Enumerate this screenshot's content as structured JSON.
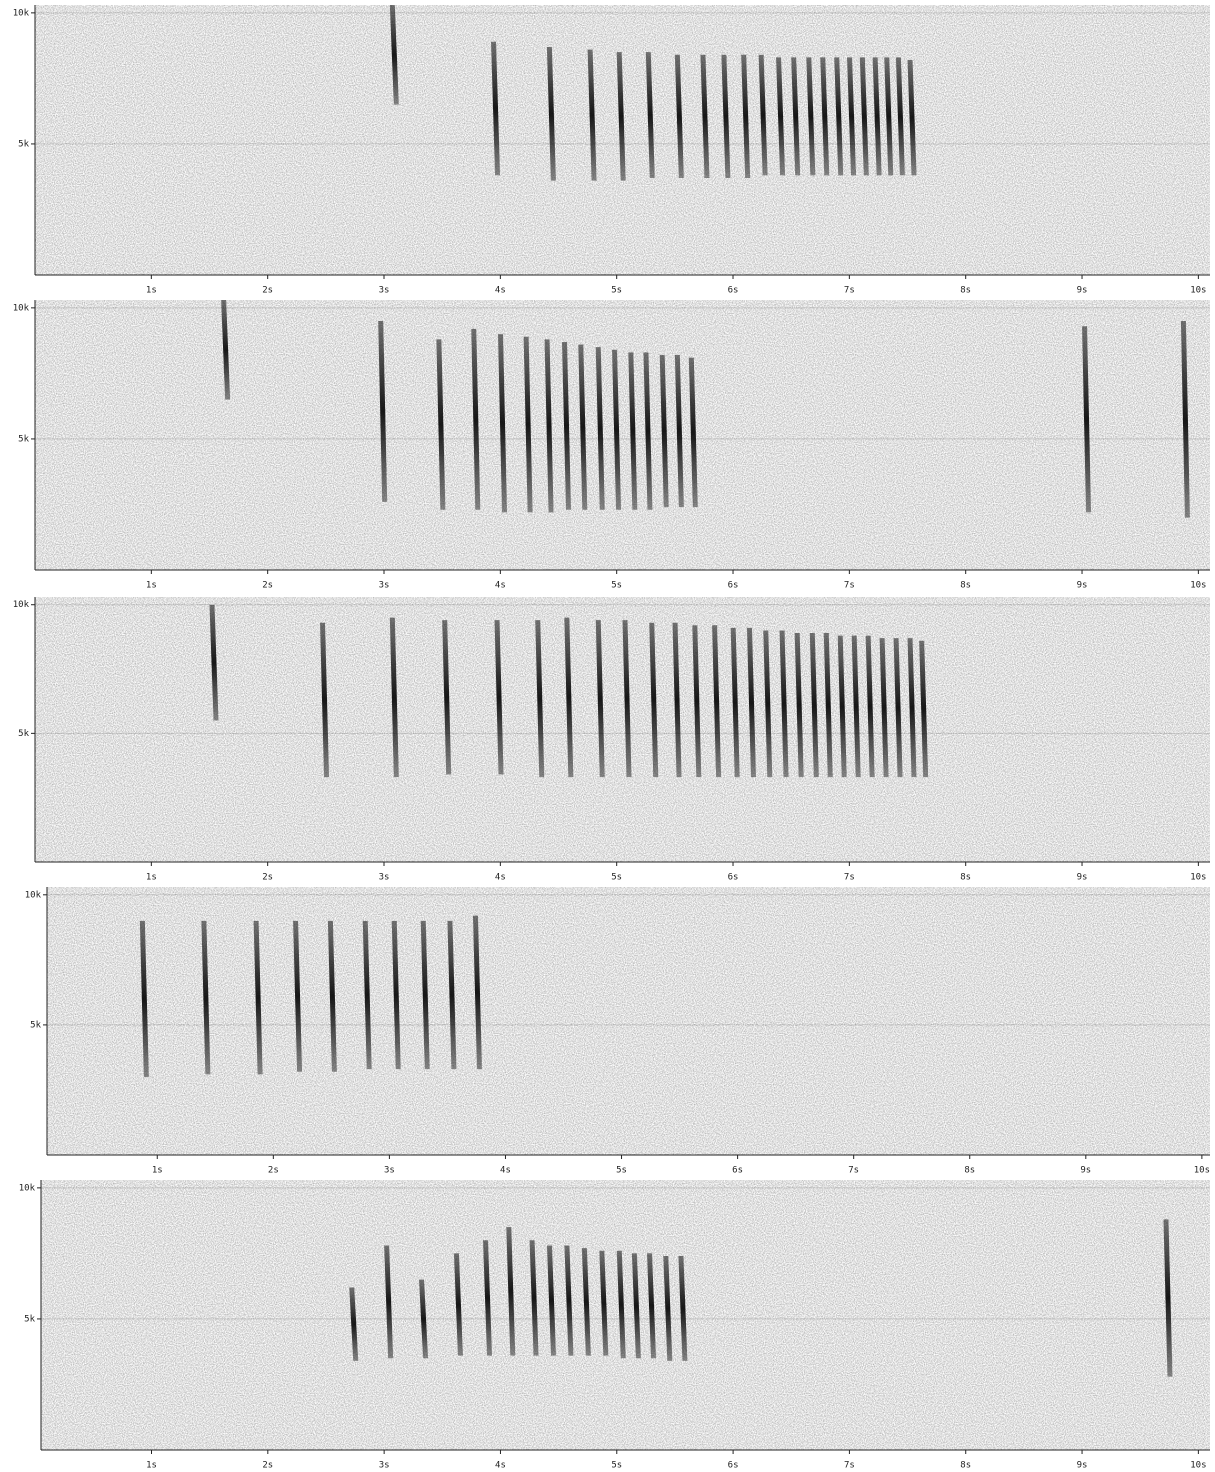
{
  "chart_data": [
    {
      "type": "spectrogram",
      "xlim": [
        0,
        10.1
      ],
      "ylim": [
        0,
        10.3
      ],
      "xticks": [
        {
          "value": 1,
          "label": "1s"
        },
        {
          "value": 2,
          "label": "2s"
        },
        {
          "value": 3,
          "label": "3s"
        },
        {
          "value": 4,
          "label": "4s"
        },
        {
          "value": 5,
          "label": "5s"
        },
        {
          "value": 6,
          "label": "6s"
        },
        {
          "value": 7,
          "label": "7s"
        },
        {
          "value": 8,
          "label": "8s"
        },
        {
          "value": 9,
          "label": "9s"
        },
        {
          "value": 10,
          "label": "10s"
        }
      ],
      "yticks": [
        {
          "value": 5,
          "label": "5k"
        },
        {
          "value": 10,
          "label": "10k"
        }
      ],
      "x": [
        3.05,
        3.92,
        4.4,
        4.75,
        5.0,
        5.25,
        5.5,
        5.72,
        5.9,
        6.07,
        6.22,
        6.37,
        6.5,
        6.63,
        6.75,
        6.87,
        6.98,
        7.09,
        7.2,
        7.3,
        7.4,
        7.5
      ],
      "high": [
        10.3,
        8.9,
        8.7,
        8.6,
        8.5,
        8.5,
        8.4,
        8.4,
        8.4,
        8.4,
        8.4,
        8.3,
        8.3,
        8.3,
        8.3,
        8.3,
        8.3,
        8.3,
        8.3,
        8.3,
        8.3,
        8.2
      ],
      "low": [
        6.5,
        3.8,
        3.6,
        3.6,
        3.6,
        3.7,
        3.7,
        3.7,
        3.7,
        3.7,
        3.8,
        3.8,
        3.8,
        3.8,
        3.8,
        3.8,
        3.8,
        3.8,
        3.8,
        3.8,
        3.8,
        3.8
      ]
    },
    {
      "type": "spectrogram",
      "xlim": [
        0,
        10.1
      ],
      "ylim": [
        0,
        10.3
      ],
      "xticks": [
        {
          "value": 1,
          "label": "1s"
        },
        {
          "value": 2,
          "label": "2s"
        },
        {
          "value": 3,
          "label": "3s"
        },
        {
          "value": 4,
          "label": "4s"
        },
        {
          "value": 5,
          "label": "5s"
        },
        {
          "value": 6,
          "label": "6s"
        },
        {
          "value": 7,
          "label": "7s"
        },
        {
          "value": 8,
          "label": "8s"
        },
        {
          "value": 9,
          "label": "9s"
        },
        {
          "value": 10,
          "label": "10s"
        }
      ],
      "yticks": [
        {
          "value": 5,
          "label": "5k"
        },
        {
          "value": 10,
          "label": "10k"
        }
      ],
      "x": [
        1.6,
        2.95,
        3.45,
        3.75,
        3.98,
        4.2,
        4.38,
        4.53,
        4.67,
        4.82,
        4.96,
        5.1,
        5.23,
        5.37,
        5.5,
        5.62,
        9.0,
        9.85
      ],
      "high": [
        10.3,
        9.5,
        8.8,
        9.2,
        9.0,
        8.9,
        8.8,
        8.7,
        8.6,
        8.5,
        8.4,
        8.3,
        8.3,
        8.2,
        8.2,
        8.1,
        9.3,
        9.5
      ],
      "low": [
        6.5,
        2.6,
        2.3,
        2.3,
        2.2,
        2.2,
        2.2,
        2.3,
        2.3,
        2.3,
        2.3,
        2.3,
        2.3,
        2.4,
        2.4,
        2.4,
        2.2,
        2.0
      ]
    },
    {
      "type": "spectrogram",
      "xlim": [
        0,
        10.1
      ],
      "ylim": [
        0,
        10.3
      ],
      "xticks": [
        {
          "value": 1,
          "label": "1s"
        },
        {
          "value": 2,
          "label": "2s"
        },
        {
          "value": 3,
          "label": "3s"
        },
        {
          "value": 4,
          "label": "4s"
        },
        {
          "value": 5,
          "label": "5s"
        },
        {
          "value": 6,
          "label": "6s"
        },
        {
          "value": 7,
          "label": "7s"
        },
        {
          "value": 8,
          "label": "8s"
        },
        {
          "value": 9,
          "label": "9s"
        },
        {
          "value": 10,
          "label": "10s"
        }
      ],
      "yticks": [
        {
          "value": 5,
          "label": "5k"
        },
        {
          "value": 10,
          "label": "10k"
        }
      ],
      "x": [
        1.5,
        2.45,
        3.05,
        3.5,
        3.95,
        4.3,
        4.55,
        4.82,
        5.05,
        5.28,
        5.48,
        5.65,
        5.82,
        5.98,
        6.12,
        6.26,
        6.4,
        6.53,
        6.66,
        6.78,
        6.9,
        7.02,
        7.14,
        7.26,
        7.38,
        7.5,
        7.6
      ],
      "high": [
        10.0,
        9.3,
        9.5,
        9.4,
        9.4,
        9.4,
        9.5,
        9.4,
        9.4,
        9.3,
        9.3,
        9.2,
        9.2,
        9.1,
        9.1,
        9.0,
        9.0,
        8.9,
        8.9,
        8.9,
        8.8,
        8.8,
        8.8,
        8.7,
        8.7,
        8.7,
        8.6
      ],
      "low": [
        5.5,
        3.3,
        3.3,
        3.4,
        3.4,
        3.3,
        3.3,
        3.3,
        3.3,
        3.3,
        3.3,
        3.3,
        3.3,
        3.3,
        3.3,
        3.3,
        3.3,
        3.3,
        3.3,
        3.3,
        3.3,
        3.3,
        3.3,
        3.3,
        3.3,
        3.3,
        3.3
      ]
    },
    {
      "type": "spectrogram",
      "xlim": [
        0.05,
        10.07
      ],
      "ylim": [
        0,
        10.3
      ],
      "xticks": [
        {
          "value": 1,
          "label": "1s"
        },
        {
          "value": 2,
          "label": "2s"
        },
        {
          "value": 3,
          "label": "3s"
        },
        {
          "value": 4,
          "label": "4s"
        },
        {
          "value": 5,
          "label": "5s"
        },
        {
          "value": 6,
          "label": "6s"
        },
        {
          "value": 7,
          "label": "7s"
        },
        {
          "value": 8,
          "label": "8s"
        },
        {
          "value": 9,
          "label": "9s"
        },
        {
          "value": 10,
          "label": "10s"
        }
      ],
      "yticks": [
        {
          "value": 5,
          "label": "5k"
        },
        {
          "value": 10,
          "label": "10k"
        }
      ],
      "x": [
        0.85,
        1.38,
        1.83,
        2.17,
        2.47,
        2.77,
        3.02,
        3.27,
        3.5,
        3.72
      ],
      "high": [
        9.0,
        9.0,
        9.0,
        9.0,
        9.0,
        9.0,
        9.0,
        9.0,
        9.0,
        9.2
      ],
      "low": [
        3.0,
        3.1,
        3.1,
        3.2,
        3.2,
        3.3,
        3.3,
        3.3,
        3.3,
        3.3
      ]
    },
    {
      "type": "spectrogram",
      "xlim": [
        0.05,
        10.1
      ],
      "ylim": [
        0,
        10.3
      ],
      "xticks": [
        {
          "value": 1,
          "label": "1s"
        },
        {
          "value": 2,
          "label": "2s"
        },
        {
          "value": 3,
          "label": "3s"
        },
        {
          "value": 4,
          "label": "4s"
        },
        {
          "value": 5,
          "label": "5s"
        },
        {
          "value": 6,
          "label": "6s"
        },
        {
          "value": 7,
          "label": "7s"
        },
        {
          "value": 8,
          "label": "8s"
        },
        {
          "value": 9,
          "label": "9s"
        },
        {
          "value": 10,
          "label": "10s"
        }
      ],
      "yticks": [
        {
          "value": 5,
          "label": "5k"
        },
        {
          "value": 10,
          "label": "10k"
        }
      ],
      "x": [
        2.7,
        3.0,
        3.3,
        3.6,
        3.85,
        4.05,
        4.25,
        4.4,
        4.55,
        4.7,
        4.85,
        5.0,
        5.13,
        5.26,
        5.4,
        5.53,
        9.7
      ],
      "high": [
        6.2,
        7.8,
        6.5,
        7.5,
        8.0,
        8.5,
        8.0,
        7.8,
        7.8,
        7.7,
        7.6,
        7.6,
        7.5,
        7.5,
        7.4,
        7.4,
        8.8
      ],
      "low": [
        3.4,
        3.5,
        3.5,
        3.6,
        3.6,
        3.6,
        3.6,
        3.6,
        3.6,
        3.6,
        3.6,
        3.5,
        3.5,
        3.5,
        3.4,
        3.4,
        2.8
      ]
    }
  ]
}
